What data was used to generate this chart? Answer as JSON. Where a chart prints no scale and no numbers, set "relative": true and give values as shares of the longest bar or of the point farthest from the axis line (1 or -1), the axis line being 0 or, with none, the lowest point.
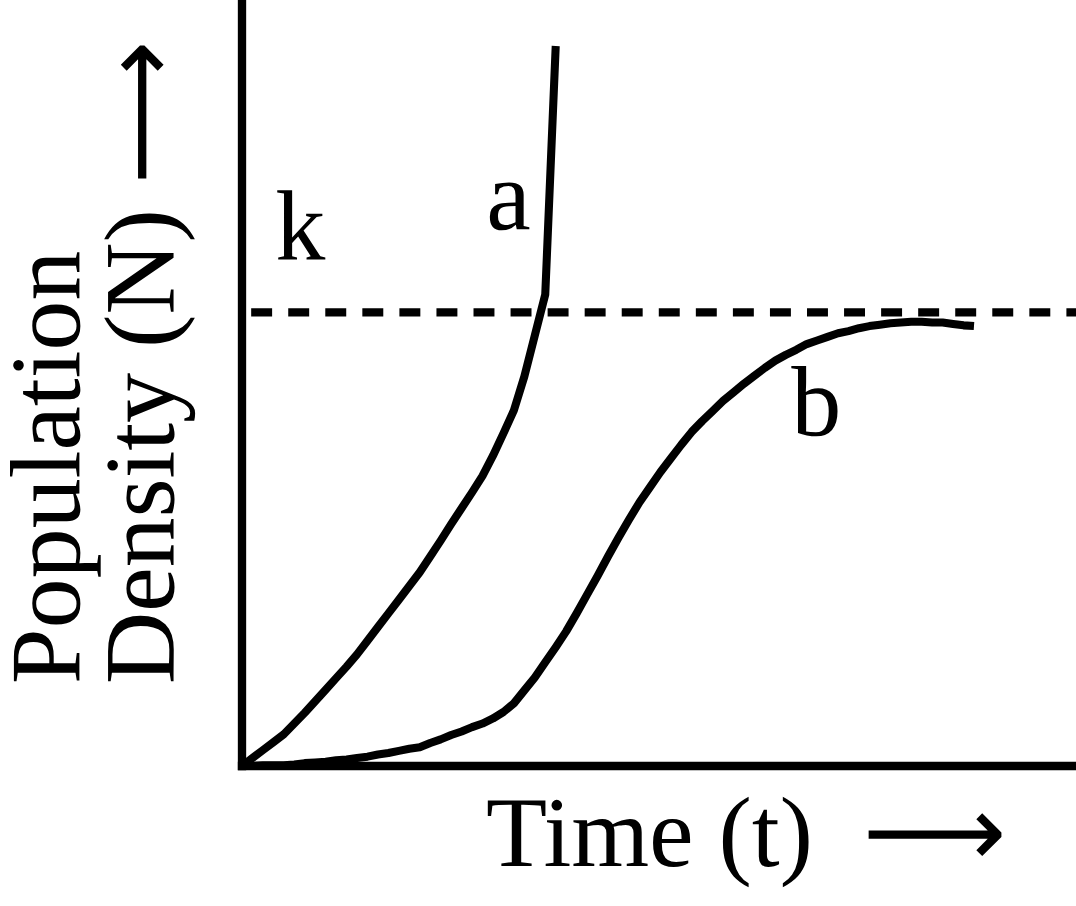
{
  "chart_data": {
    "type": "line",
    "relative": true,
    "xlabel": "Time (t)  ⟶",
    "ylabel": "Population\nDensity (N) ⟶",
    "categories": [
      null,
      null,
      null,
      null,
      null,
      null,
      null,
      null,
      null,
      null,
      null,
      null,
      null,
      null,
      null,
      null,
      null,
      null,
      null,
      null,
      null,
      null,
      null,
      null,
      null,
      null,
      null,
      null,
      null,
      null,
      null,
      null,
      null,
      null,
      null,
      null,
      null,
      null,
      null,
      null,
      null,
      null,
      null,
      null,
      null,
      null,
      null,
      null,
      null,
      null,
      null,
      null,
      null,
      null,
      null,
      null,
      null,
      null,
      null,
      null,
      null,
      null,
      null,
      null,
      null,
      null,
      null,
      null,
      null,
      null,
      null
    ],
    "series": [
      {
        "name": "a",
        "color": "#000000",
        "values": [
          0,
          0.011,
          0.022,
          0.033,
          0.044,
          0.059,
          0.074,
          0.09,
          0.106,
          0.122,
          0.138,
          0.155,
          0.174,
          0.193,
          0.212,
          0.231,
          0.25,
          0.269,
          0.291,
          0.313,
          0.336,
          0.358,
          0.38,
          0.403,
          0.431,
          0.462,
          0.494,
          0.541,
          0.598,
          0.655,
          1.0,
          null,
          null,
          null,
          null,
          null,
          null,
          null,
          null,
          null,
          null,
          null,
          null,
          null,
          null,
          null,
          null,
          null,
          null,
          null,
          null,
          null,
          null,
          null,
          null,
          null,
          null,
          null,
          null,
          null,
          null,
          null,
          null,
          null,
          null,
          null,
          null,
          null,
          null,
          null,
          null
        ]
      },
      {
        "name": "b",
        "color": "#000000",
        "values": [
          0,
          0,
          0.001,
          0.001,
          0.001,
          0.002,
          0.004,
          0.005,
          0.006,
          0.008,
          0.009,
          0.011,
          0.013,
          0.016,
          0.018,
          0.021,
          0.024,
          0.026,
          0.032,
          0.037,
          0.043,
          0.048,
          0.054,
          0.059,
          0.066,
          0.075,
          0.087,
          0.105,
          0.123,
          0.144,
          0.165,
          0.187,
          0.212,
          0.238,
          0.264,
          0.291,
          0.317,
          0.342,
          0.366,
          0.387,
          0.408,
          0.427,
          0.446,
          0.464,
          0.479,
          0.493,
          0.507,
          0.519,
          0.531,
          0.542,
          0.553,
          0.563,
          0.571,
          0.578,
          0.586,
          0.591,
          0.596,
          0.601,
          0.604,
          0.608,
          0.611,
          0.613,
          0.615,
          0.616,
          0.617,
          0.617,
          0.616,
          0.616,
          0.614,
          0.612,
          0.611
        ]
      }
    ],
    "ref_lines": [
      {
        "axis": "y",
        "value": 0.63,
        "label": "k",
        "color": "#000000",
        "line_style": "dashed"
      }
    ]
  }
}
